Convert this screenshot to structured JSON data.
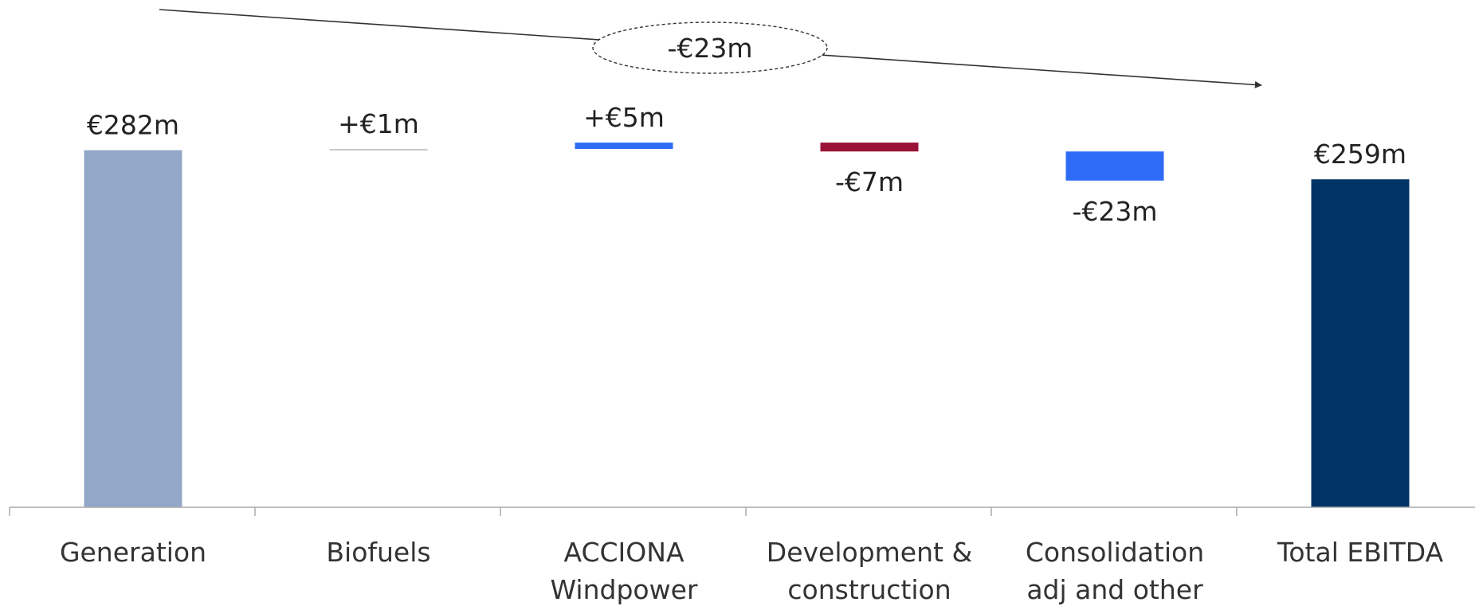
{
  "chart_data": {
    "type": "bar",
    "subtype": "waterfall",
    "title": "",
    "xlabel": "",
    "ylabel": "",
    "categories": [
      [
        "Generation"
      ],
      [
        "Biofuels"
      ],
      [
        "ACCIONA",
        "Windpower"
      ],
      [
        "Development &",
        "construction"
      ],
      [
        "Consolidation",
        "adj and other"
      ],
      [
        "Total EBITDA"
      ]
    ],
    "steps": [
      {
        "kind": "total",
        "value": 282,
        "label": "€282m",
        "color": "#93a8c8"
      },
      {
        "kind": "delta",
        "value": 1,
        "label": "+€1m",
        "color": "#c8c8c8"
      },
      {
        "kind": "delta",
        "value": 5,
        "label": "+€5m",
        "color": "#2f6cf6"
      },
      {
        "kind": "delta",
        "value": -7,
        "label": "-€7m",
        "color": "#9b1237"
      },
      {
        "kind": "delta",
        "value": -23,
        "label": "-€23m",
        "color": "#2f6cf6"
      },
      {
        "kind": "total",
        "value": 259,
        "label": "€259m",
        "color": "#003366"
      }
    ],
    "annotation": {
      "text": "-€23m",
      "from": "Generation",
      "to": "Total EBITDA"
    },
    "ylim": [
      0,
      282
    ],
    "grid": false,
    "legend": "none"
  }
}
